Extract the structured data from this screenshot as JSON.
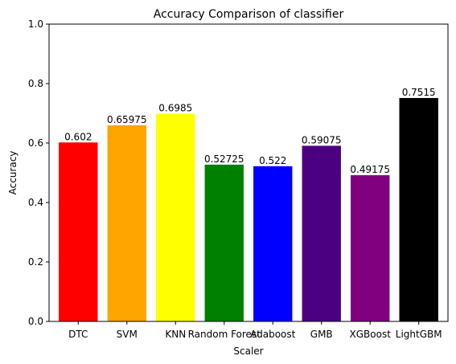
{
  "chart_data": {
    "type": "bar",
    "title": "Accuracy Comparison of classifier",
    "xlabel": "Scaler",
    "ylabel": "Accuracy",
    "ylim": [
      0,
      1.0
    ],
    "yticks": [
      "0.0",
      "0.2",
      "0.4",
      "0.6",
      "0.8",
      "1.0"
    ],
    "categories": [
      "DTC",
      "SVM",
      "KNN",
      "Random Forest",
      "Adaboost",
      "GMB",
      "XGBoost",
      "LightGBM"
    ],
    "values": [
      0.602,
      0.65975,
      0.6985,
      0.52725,
      0.522,
      0.59075,
      0.49175,
      0.7515
    ],
    "value_labels": [
      "0.602",
      "0.65975",
      "0.6985",
      "0.52725",
      "0.522",
      "0.59075",
      "0.49175",
      "0.7515"
    ],
    "colors": [
      "#ff0000",
      "#ffa500",
      "#ffff00",
      "#008000",
      "#0000ff",
      "#4b0082",
      "#800080",
      "#000000"
    ],
    "grid": false,
    "legend": "none"
  }
}
